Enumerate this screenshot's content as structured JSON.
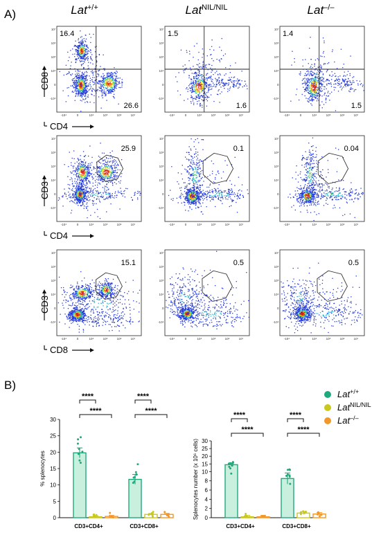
{
  "panel_labels": {
    "a": "A)",
    "b": "B)"
  },
  "genotypes": [
    {
      "name": "Lat",
      "sup": "+/+",
      "color": "#1fa97c"
    },
    {
      "name": "Lat",
      "sup": "NIL/NIL",
      "color": "#c8c81e"
    },
    {
      "name": "Lat",
      "sup": "–/–",
      "color": "#f2972a"
    }
  ],
  "flow": {
    "tick_labels": {
      "y": [
        "10⁷",
        "10⁶",
        "10⁵",
        "10⁴",
        "0",
        "-10⁴"
      ],
      "x": [
        "-10⁴",
        "0",
        "10⁴",
        "10⁵",
        "10⁶",
        "10⁷"
      ]
    },
    "rows": [
      {
        "y_label": "CD8",
        "x_label": "CD4",
        "gate": "quadrant",
        "values": [
          {
            "q1": "16.4",
            "q4": "26.6"
          },
          {
            "q1": "1.5",
            "q4": "1.6"
          },
          {
            "q1": "1.4",
            "q4": "1.5"
          }
        ]
      },
      {
        "y_label": "CD3",
        "x_label": "CD4",
        "gate": "polygon",
        "values": [
          "25.9",
          "0.1",
          "0.04"
        ]
      },
      {
        "y_label": "CD3",
        "x_label": "CD8",
        "gate": "polygon",
        "values": [
          "15.1",
          "0.5",
          "0.5"
        ]
      }
    ]
  },
  "chart_data": [
    {
      "type": "bar",
      "ylabel": "% splenocytes",
      "ylim": [
        0,
        30
      ],
      "yticks": [
        "0",
        "5",
        "10",
        "15",
        "20",
        "25",
        "30"
      ],
      "categories": [
        "CD3+CD4+",
        "CD3+CD8+"
      ],
      "series": [
        {
          "name": "Lat+/+",
          "values": [
            19.8,
            11.7
          ]
        },
        {
          "name": "LatNIL/NIL",
          "values": [
            0.3,
            1.0
          ]
        },
        {
          "name": "Lat–/–",
          "values": [
            0.4,
            1.0
          ]
        }
      ],
      "significance": [
        {
          "category": "CD3+CD4+",
          "pair": [
            "Lat+/+",
            "LatNIL/NIL"
          ],
          "label": "****"
        },
        {
          "category": "CD3+CD4+",
          "pair": [
            "Lat+/+",
            "Lat–/–"
          ],
          "label": "****"
        },
        {
          "category": "CD3+CD8+",
          "pair": [
            "Lat+/+",
            "LatNIL/NIL"
          ],
          "label": "****"
        },
        {
          "category": "CD3+CD8+",
          "pair": [
            "Lat+/+",
            "Lat–/–"
          ],
          "label": "****"
        }
      ]
    },
    {
      "type": "bar",
      "ylabel": "Splenocytes number (x 10⁶ cells)",
      "ylim": [
        0,
        30
      ],
      "yticks": [
        "0",
        "2",
        "4",
        "6",
        "8",
        "10",
        "15",
        "20",
        "25",
        "30"
      ],
      "categories": [
        "CD3+CD4+",
        "CD3+CD8+"
      ],
      "series": [
        {
          "name": "Lat+/+",
          "values": [
            14.5,
            8.5
          ]
        },
        {
          "name": "LatNIL/NIL",
          "values": [
            0.2,
            1.0
          ]
        },
        {
          "name": "Lat–/–",
          "values": [
            0.2,
            0.8
          ]
        }
      ],
      "significance": [
        {
          "category": "CD3+CD4+",
          "pair": [
            "Lat+/+",
            "LatNIL/NIL"
          ],
          "label": "****"
        },
        {
          "category": "CD3+CD4+",
          "pair": [
            "Lat+/+",
            "Lat–/–"
          ],
          "label": "****"
        },
        {
          "category": "CD3+CD8+",
          "pair": [
            "Lat+/+",
            "LatNIL/NIL"
          ],
          "label": "****"
        },
        {
          "category": "CD3+CD8+",
          "pair": [
            "Lat+/+",
            "Lat–/–"
          ],
          "label": "****"
        }
      ]
    }
  ]
}
